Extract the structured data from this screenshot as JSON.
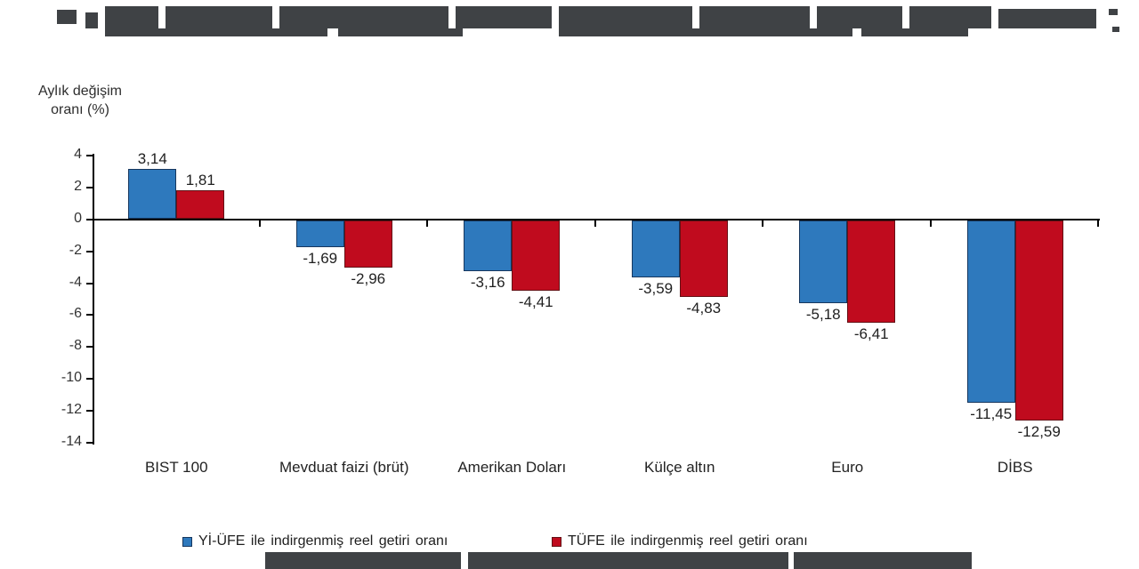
{
  "axis_title": "Aylık değişim\noranı (%)",
  "colors": {
    "series_blue": "#2e79bd",
    "series_blue_border": "#17375e",
    "series_red": "#c00b1e",
    "series_red_border": "#641116",
    "axis": "#000000"
  },
  "chart_data": {
    "type": "bar",
    "title": "",
    "xlabel": "",
    "ylabel": "Aylık değişim oranı (%)",
    "ylim": [
      -14,
      4
    ],
    "ytick_step": 2,
    "yticks": [
      "4",
      "2",
      "0",
      "-2",
      "-4",
      "-6",
      "-8",
      "-10",
      "-12",
      "-14"
    ],
    "grid": false,
    "legend_position": "bottom",
    "categories": [
      "BIST 100",
      "Mevduat faizi (brüt)",
      "Amerikan Doları",
      "Külçe altın",
      "Euro",
      "DİBS"
    ],
    "series": [
      {
        "name": "Yİ-ÜFE ile indirgenmiş reel getiri oranı",
        "color": "#2e79bd",
        "values": [
          3.14,
          -1.69,
          -3.16,
          -3.59,
          -5.18,
          -11.45
        ],
        "labels": [
          "3,14",
          "-1,69",
          "-3,16",
          "-3,59",
          "-5,18",
          "-11,45"
        ]
      },
      {
        "name": "TÜFE ile indirgenmiş reel getiri oranı",
        "color": "#c00b1e",
        "values": [
          1.81,
          -2.96,
          -4.41,
          -4.83,
          -6.41,
          -12.59
        ],
        "labels": [
          "1,81",
          "-2,96",
          "-4,41",
          "-4,83",
          "-6,41",
          "-12,59"
        ]
      }
    ]
  }
}
